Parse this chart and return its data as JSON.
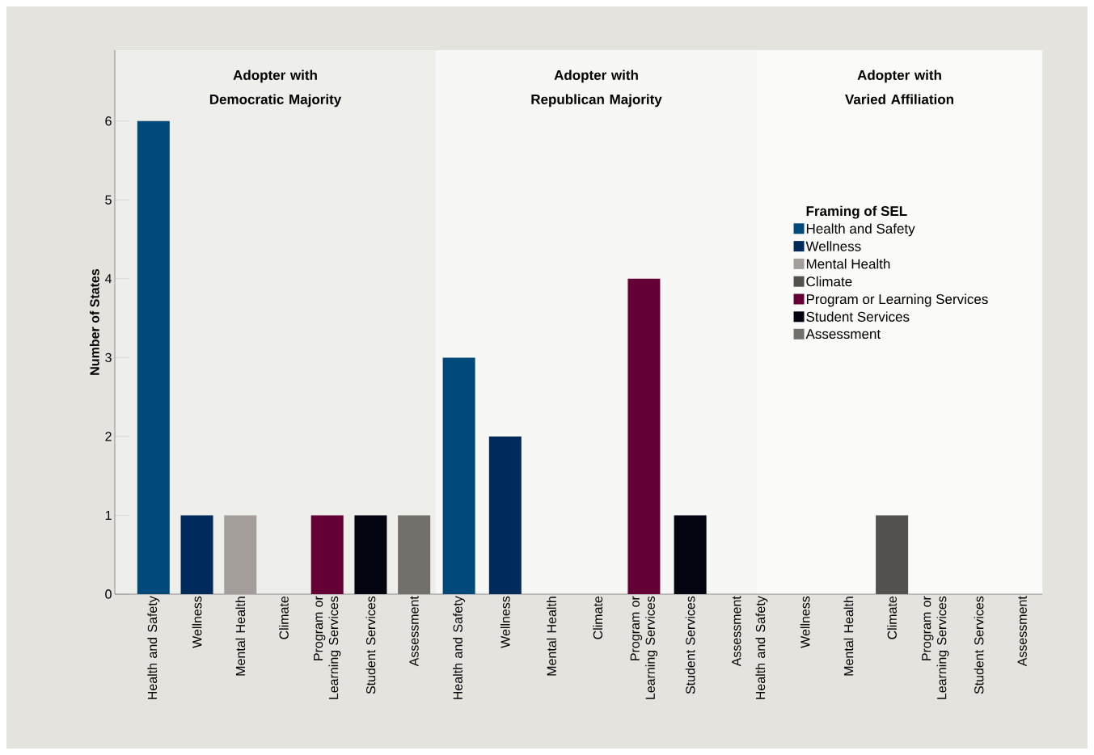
{
  "chart_data": [
    {
      "type": "bar",
      "title": "Adopter with Democratic Majority",
      "ylabel": "Number of States",
      "categories": [
        "Health and Safety",
        "Wellness",
        "Mental Health",
        "Climate",
        "Program or Learning Services",
        "Student Services",
        "Assessment"
      ],
      "ylim": [
        0,
        6.9
      ],
      "yticks": [
        0,
        1,
        2,
        3,
        4,
        5,
        6
      ],
      "series": [
        {
          "color": "#00497a",
          "values": [
            6,
            null,
            null,
            null,
            null,
            null,
            null
          ]
        },
        {
          "color": "#002a5c",
          "values": [
            null,
            1,
            null,
            null,
            null,
            null,
            null
          ]
        },
        {
          "color": "#a39e99",
          "values": [
            null,
            null,
            1,
            null,
            null,
            null,
            null
          ]
        },
        {
          "color": "#54504d",
          "values": [
            null,
            null,
            null,
            0,
            null,
            null,
            null
          ]
        },
        {
          "color": "#650037",
          "values": [
            null,
            null,
            null,
            null,
            1,
            null,
            null
          ]
        },
        {
          "color": "#020410",
          "values": [
            null,
            null,
            null,
            null,
            null,
            1,
            null
          ]
        },
        {
          "color": "#736f6b",
          "values": [
            null,
            null,
            null,
            null,
            null,
            null,
            1
          ]
        }
      ]
    },
    {
      "type": "bar",
      "title": "Adopter with Republican Majority",
      "categories": [
        "Health and Safety",
        "Wellness",
        "Mental Health",
        "Climate",
        "Program or Learning Services",
        "Student Services",
        "Assessment"
      ],
      "ylim": [
        0,
        6.9
      ],
      "tick_labels": "x",
      "series": [
        {
          "color": "#00497a",
          "values": [
            3,
            null,
            null,
            null,
            null,
            null,
            null
          ]
        },
        {
          "color": "#002a5c",
          "values": [
            null,
            2,
            null,
            null,
            null,
            null,
            null
          ]
        },
        {
          "color": "#a39e99",
          "values": [
            null,
            null,
            0,
            null,
            null,
            null,
            null
          ]
        },
        {
          "color": "#54504d",
          "values": [
            null,
            null,
            null,
            0,
            null,
            null,
            null
          ]
        },
        {
          "color": "#650037",
          "values": [
            null,
            null,
            null,
            null,
            4,
            null,
            null
          ]
        },
        {
          "color": "#020410",
          "values": [
            null,
            null,
            null,
            null,
            null,
            1,
            null
          ]
        },
        {
          "color": "#736f6b",
          "values": [
            null,
            null,
            null,
            null,
            null,
            null,
            0
          ]
        }
      ]
    },
    {
      "type": "bar",
      "title": "Adopter with Varied Affiliation",
      "categories": [
        "Health and Safety",
        "Wellness",
        "Mental Health",
        "Climate",
        "Program or Learning Services",
        "Student Services",
        "Assessment"
      ],
      "ylim": [
        0,
        6.9
      ],
      "tick_labels": "x",
      "legend": "right",
      "legend_title": "Framing of SEL",
      "series": [
        {
          "name": "Health and Safety",
          "color": "#00497a",
          "values": [
            0,
            null,
            null,
            null,
            null,
            null,
            null
          ]
        },
        {
          "name": "Wellness",
          "color": "#002a5c",
          "values": [
            null,
            0,
            null,
            null,
            null,
            null,
            null
          ]
        },
        {
          "name": "Mental Health",
          "color": "#a39e99",
          "values": [
            null,
            null,
            0,
            null,
            null,
            null,
            null
          ]
        },
        {
          "name": "Climate",
          "color": "#54504d",
          "values": [
            null,
            null,
            null,
            1,
            null,
            null,
            null
          ]
        },
        {
          "name": "Program or Learning Services",
          "color": "#650037",
          "values": [
            null,
            null,
            null,
            null,
            0,
            null,
            null
          ]
        },
        {
          "name": "Student Services",
          "color": "#020410",
          "values": [
            null,
            null,
            null,
            null,
            null,
            0,
            null
          ]
        },
        {
          "name": "Assessment",
          "color": "#736f6b",
          "values": [
            null,
            null,
            null,
            null,
            null,
            null,
            0
          ]
        }
      ]
    }
  ]
}
